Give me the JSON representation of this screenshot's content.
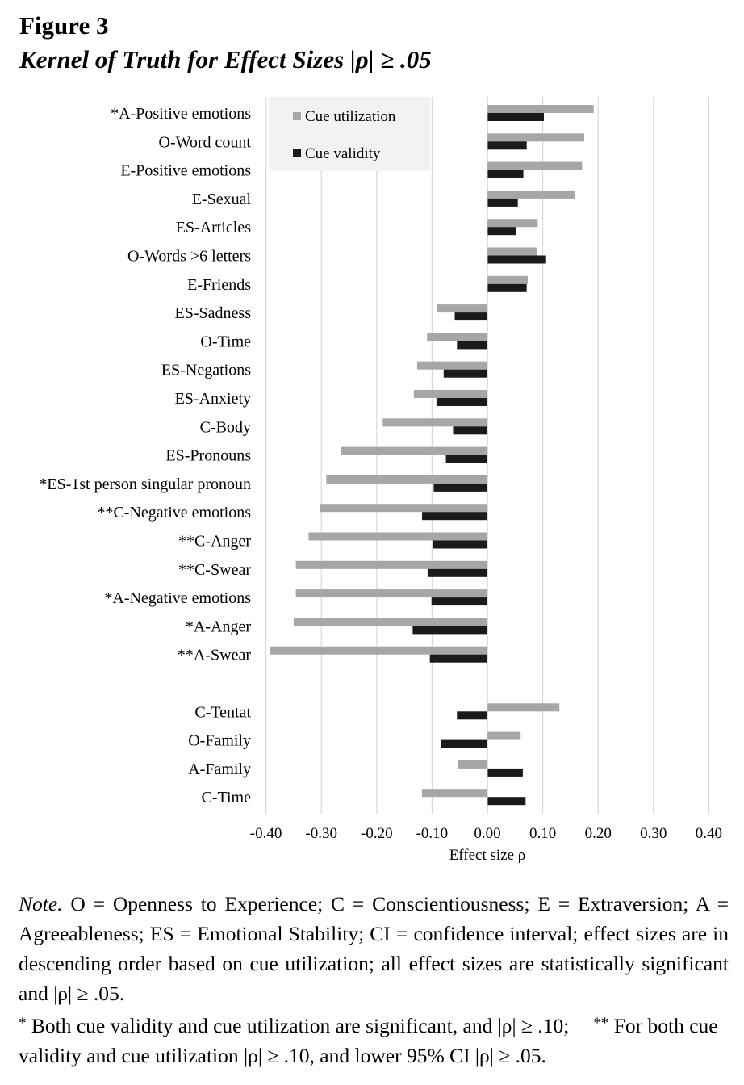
{
  "figure": {
    "number": "Figure 3",
    "title": "Kernel of Truth for Effect Sizes |ρ| ≥ .05"
  },
  "chart_data": {
    "type": "bar",
    "orientation": "horizontal",
    "xlabel": "Effect size ρ",
    "xlim": [
      -0.4,
      0.4
    ],
    "x_ticks": [
      "-0.40",
      "-0.30",
      "-0.20",
      "-0.10",
      "0.00",
      "0.10",
      "0.20",
      "0.30",
      "0.40"
    ],
    "grid": true,
    "legend_position": "top-left",
    "colors": {
      "Cue utilization": "#a6a6a6",
      "Cue validity": "#1a1a1a"
    },
    "categories": [
      "*A-Positive emotions",
      "O-Word count",
      "E-Positive emotions",
      "E-Sexual",
      "ES-Articles",
      "O-Words >6 letters",
      "E-Friends",
      "ES-Sadness",
      "O-Time",
      "ES-Negations",
      "ES-Anxiety",
      "C-Body",
      "ES-Pronouns",
      "*ES-1st person singular pronoun",
      "**C-Negative emotions",
      "**C-Anger",
      "**C-Swear",
      "*A-Negative emotions",
      "*A-Anger",
      "**A-Swear",
      "",
      "C-Tentat",
      "O-Family",
      "A-Family",
      "C-Time"
    ],
    "series": [
      {
        "name": "Cue utilization",
        "values": [
          0.192,
          0.175,
          0.171,
          0.158,
          0.091,
          0.089,
          0.073,
          -0.091,
          -0.109,
          -0.127,
          -0.133,
          -0.189,
          -0.264,
          -0.291,
          -0.303,
          -0.323,
          -0.346,
          -0.346,
          -0.35,
          -0.392,
          null,
          0.13,
          0.06,
          -0.054,
          -0.118
        ]
      },
      {
        "name": "Cue validity",
        "values": [
          0.102,
          0.071,
          0.065,
          0.055,
          0.052,
          0.106,
          0.071,
          -0.059,
          -0.055,
          -0.079,
          -0.092,
          -0.062,
          -0.075,
          -0.097,
          -0.118,
          -0.099,
          -0.108,
          -0.101,
          -0.135,
          -0.104,
          null,
          -0.055,
          -0.084,
          0.064,
          0.069
        ]
      }
    ]
  },
  "note": {
    "label": "Note.",
    "text": "  O = Openness to Experience; C = Conscientiousness; E = Extraversion; A = Agreeableness; ES = Emotional Stability; CI = confidence interval; effect sizes are in descending order based on cue utilization; all effect sizes are statistically significant and |ρ| ≥ .05.",
    "single_star": "*",
    "single_star_text": " Both cue validity and cue utilization are significant, and |ρ| ≥ .10;",
    "double_star": "**",
    "double_star_text": " For both cue validity and cue utilization |ρ| ≥ .10, and lower 95% CI |ρ| ≥ .05."
  }
}
